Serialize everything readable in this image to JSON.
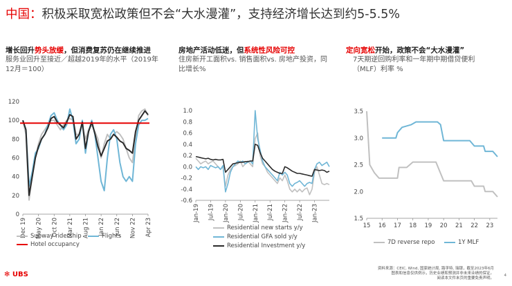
{
  "header": {
    "title_red": "中国：",
    "title_rest": "积极采取宽松政策但不会“大水漫灌”，支持经济增长达到约5-5.5%"
  },
  "panels": {
    "p1": {
      "head_a": "增长回升",
      "head_b": "势头放缓",
      "head_c": "，但消费复苏仍在继续推进",
      "sub": "服务业回升至接近／超越2019年的水平（2019年12月＝100）"
    },
    "p2": {
      "head_a": "房地产活动低迷，但",
      "head_b": "系统性风险可控",
      "sub": "住房新开工面积vs. 销售面积vs. 房地产投资，同比增长%"
    },
    "p3": {
      "head_a": "定向宽松",
      "head_b": "开始，政策不会“大水漫灌”",
      "sub": "7天期逆回购利率和一年期中期借贷便利（MLF）利率 %"
    }
  },
  "colors": {
    "red": "#e60000",
    "light_gray": "#c0c0c0",
    "dark": "#2a2a2a",
    "blue": "#6fb6d6"
  },
  "chart_data": [
    {
      "id": "services",
      "type": "line",
      "ylim": [
        0,
        120
      ],
      "yticks": [
        0,
        20,
        40,
        60,
        80,
        100,
        120
      ],
      "xlim": [
        0,
        40
      ],
      "xticks": [
        {
          "x": 0,
          "label": "Dec 19"
        },
        {
          "x": 5,
          "label": "May 20"
        },
        {
          "x": 10,
          "label": "Oct 20"
        },
        {
          "x": 15,
          "label": "Mar 21"
        },
        {
          "x": 20,
          "label": "Aug 21"
        },
        {
          "x": 25,
          "label": "Jan 22"
        },
        {
          "x": 30,
          "label": "Jun 22"
        },
        {
          "x": 35,
          "label": "Nov 22"
        },
        {
          "x": 40,
          "label": "Apr 23"
        }
      ],
      "reference_line": 97,
      "series": [
        {
          "name": "Subway ridership",
          "color": "#c0c0c0",
          "width": 2,
          "values": [
            100,
            85,
            15,
            40,
            60,
            75,
            85,
            90,
            95,
            100,
            100,
            95,
            90,
            95,
            100,
            102,
            100,
            85,
            85,
            95,
            80,
            90,
            95,
            88,
            80,
            60,
            75,
            85,
            80,
            85,
            88,
            85,
            80,
            70,
            60,
            55,
            80,
            105,
            110,
            112,
            105
          ]
        },
        {
          "name": "Flights",
          "color": "#6fb6d6",
          "width": 2,
          "values": [
            100,
            90,
            30,
            45,
            65,
            70,
            80,
            85,
            95,
            105,
            108,
            100,
            95,
            90,
            95,
            112,
            100,
            75,
            80,
            100,
            65,
            88,
            100,
            85,
            60,
            35,
            25,
            60,
            85,
            90,
            80,
            55,
            40,
            35,
            40,
            35,
            75,
            95,
            100,
            100,
            102
          ]
        },
        {
          "name": "Hotel occupancy",
          "color": "#2a2a2a",
          "width": 2,
          "values": [
            100,
            90,
            20,
            40,
            60,
            72,
            80,
            85,
            92,
            102,
            104,
            98,
            95,
            92,
            98,
            106,
            104,
            80,
            85,
            98,
            70,
            88,
            98,
            86,
            72,
            62,
            70,
            78,
            80,
            85,
            82,
            78,
            76,
            70,
            68,
            65,
            88,
            100,
            105,
            110,
            106
          ]
        }
      ],
      "legend": [
        "Subway ridership",
        "Flights",
        "Hotel occupancy"
      ]
    },
    {
      "id": "property",
      "type": "line",
      "ylim": [
        -0.6,
        1.0
      ],
      "yticks": [
        -0.6,
        -0.4,
        -0.2,
        0.0,
        0.2,
        0.4,
        0.6,
        0.8,
        1.0
      ],
      "ytick_labels": [
        "-0.6",
        "-0.4",
        "-0.2",
        "0.0",
        "0.2",
        "0.4",
        "0.6",
        "0.8",
        "1.0"
      ],
      "xlim": [
        0,
        54
      ],
      "xticks": [
        {
          "x": 0,
          "label": "Jan-19"
        },
        {
          "x": 6,
          "label": "Jul-19"
        },
        {
          "x": 12,
          "label": "Jan-20"
        },
        {
          "x": 18,
          "label": "Jul-20"
        },
        {
          "x": 24,
          "label": "Jan-21"
        },
        {
          "x": 30,
          "label": "Jul-21"
        },
        {
          "x": 36,
          "label": "Jan-22"
        },
        {
          "x": 42,
          "label": "Jul-22"
        },
        {
          "x": 48,
          "label": "Jan-23"
        }
      ],
      "series": [
        {
          "name": "Residential new starts y/y",
          "color": "#c0c0c0",
          "width": 1.6,
          "values": [
            0.15,
            0.1,
            0.05,
            0.08,
            0.1,
            0.05,
            0.08,
            0.1,
            0.05,
            0.0,
            -0.05,
            0.0,
            -0.35,
            -0.15,
            -0.05,
            0.0,
            0.02,
            0.05,
            0.1,
            0.0,
            0.05,
            0.1,
            0.05,
            0.0,
            0.5,
            0.6,
            0.2,
            0.05,
            0.0,
            -0.1,
            -0.15,
            -0.2,
            -0.25,
            -0.3,
            -0.2,
            -0.25,
            -0.15,
            -0.25,
            -0.4,
            -0.45,
            -0.4,
            -0.45,
            -0.4,
            -0.45,
            -0.4,
            -0.38,
            -0.5,
            -0.4,
            -0.1,
            0.0,
            -0.15,
            -0.3,
            -0.32,
            -0.3,
            -0.32
          ]
        },
        {
          "name": "Residential GFA sold y/y",
          "color": "#6fb6d6",
          "width": 1.6,
          "values": [
            0.0,
            -0.05,
            0.0,
            -0.02,
            0.0,
            -0.05,
            0.02,
            0.0,
            -0.02,
            0.0,
            -0.05,
            0.02,
            -0.45,
            -0.3,
            -0.1,
            0.0,
            0.05,
            0.1,
            0.08,
            0.1,
            0.05,
            0.08,
            0.1,
            0.05,
            1.0,
            0.5,
            0.3,
            0.1,
            0.0,
            -0.05,
            -0.1,
            -0.15,
            -0.2,
            -0.25,
            -0.1,
            -0.15,
            -0.1,
            -0.15,
            -0.3,
            -0.35,
            -0.3,
            -0.28,
            -0.25,
            -0.3,
            -0.35,
            -0.3,
            -0.28,
            -0.3,
            -0.05,
            0.05,
            0.08,
            0.02,
            0.05,
            0.08,
            0.0
          ]
        },
        {
          "name": "Residential Investment y/y",
          "color": "#2a2a2a",
          "width": 1.6,
          "values": [
            0.18,
            0.17,
            0.16,
            0.15,
            0.14,
            0.15,
            0.13,
            0.12,
            0.13,
            0.12,
            0.12,
            0.13,
            -0.1,
            -0.05,
            0.0,
            0.05,
            0.06,
            0.07,
            0.08,
            0.08,
            0.09,
            0.09,
            0.1,
            0.1,
            0.4,
            0.38,
            0.25,
            0.15,
            0.1,
            0.05,
            0.0,
            -0.05,
            -0.08,
            -0.1,
            -0.12,
            -0.12,
            0.0,
            -0.02,
            -0.05,
            -0.08,
            -0.1,
            -0.12,
            -0.12,
            -0.13,
            -0.14,
            -0.15,
            -0.16,
            -0.17,
            -0.05,
            -0.06,
            -0.07,
            -0.06,
            -0.07,
            -0.1,
            -0.08
          ]
        }
      ],
      "legend": [
        "Residential new starts y/y",
        "Residential GFA sold y/y",
        "Residential Investment y/y"
      ]
    },
    {
      "id": "rates",
      "type": "line",
      "ylim": [
        1.5,
        3.5
      ],
      "yticks": [
        1.5,
        2.0,
        2.5,
        3.0,
        3.5
      ],
      "ytick_labels": [
        "1.5",
        "2.0",
        "2.5",
        "3.0",
        "3.5"
      ],
      "xlim": [
        15,
        23.5
      ],
      "xticks": [
        {
          "x": 15,
          "label": "15"
        },
        {
          "x": 16,
          "label": "16"
        },
        {
          "x": 17,
          "label": "17"
        },
        {
          "x": 18,
          "label": "18"
        },
        {
          "x": 19,
          "label": "19"
        },
        {
          "x": 20,
          "label": "20"
        },
        {
          "x": 21,
          "label": "21"
        },
        {
          "x": 22,
          "label": "22"
        },
        {
          "x": 23,
          "label": "23"
        }
      ],
      "series": [
        {
          "name": "7D reverse repo",
          "color": "#c0c0c0",
          "width": 2,
          "points": [
            [
              15.0,
              3.5
            ],
            [
              15.2,
              2.5
            ],
            [
              15.5,
              2.35
            ],
            [
              15.8,
              2.25
            ],
            [
              17.0,
              2.25
            ],
            [
              17.1,
              2.45
            ],
            [
              17.6,
              2.45
            ],
            [
              18.0,
              2.55
            ],
            [
              18.3,
              2.55
            ],
            [
              19.5,
              2.55
            ],
            [
              20.0,
              2.2
            ],
            [
              21.8,
              2.2
            ],
            [
              22.0,
              2.1
            ],
            [
              22.6,
              2.1
            ],
            [
              22.7,
              2.0
            ],
            [
              23.2,
              2.0
            ],
            [
              23.5,
              1.9
            ]
          ]
        },
        {
          "name": "1Y MLF",
          "color": "#6fb6d6",
          "width": 2,
          "points": [
            [
              16.0,
              3.0
            ],
            [
              16.9,
              3.0
            ],
            [
              17.0,
              3.1
            ],
            [
              17.3,
              3.2
            ],
            [
              17.9,
              3.25
            ],
            [
              18.2,
              3.3
            ],
            [
              19.0,
              3.3
            ],
            [
              19.6,
              3.3
            ],
            [
              19.8,
              3.25
            ],
            [
              20.0,
              2.95
            ],
            [
              21.7,
              2.95
            ],
            [
              22.0,
              2.85
            ],
            [
              22.6,
              2.85
            ],
            [
              22.7,
              2.75
            ],
            [
              23.2,
              2.75
            ],
            [
              23.5,
              2.65
            ]
          ]
        }
      ],
      "legend": [
        "7D reverse repo",
        "1Y MLF"
      ]
    }
  ],
  "footnote": {
    "line1": "资料来源：CEIC, Wind, 国家统计局, 路孚特, 瑞银，截至2023年6月",
    "line2": "图表和信息仅供例示，历史业绩和预测并非未来业绩的保证。",
    "line3": "阅读本文件末页的重要免责声明。"
  },
  "branding": {
    "logo": "UBS",
    "page": "4"
  }
}
